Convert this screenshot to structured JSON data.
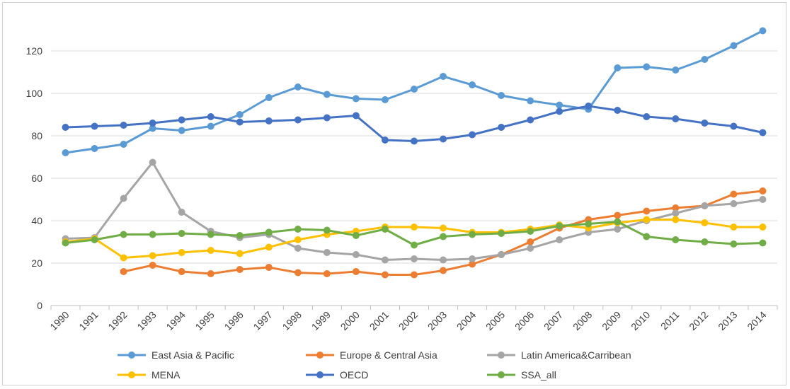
{
  "chart_data": {
    "type": "line",
    "title": "",
    "xlabel": "",
    "ylabel": "",
    "x": [
      "1990",
      "1991",
      "1992",
      "1993",
      "1994",
      "1995",
      "1996",
      "1997",
      "1998",
      "1999",
      "2000",
      "2001",
      "2002",
      "2003",
      "2004",
      "2005",
      "2006",
      "2007",
      "2008",
      "2009",
      "2010",
      "2011",
      "2012",
      "2013",
      "2014"
    ],
    "ylim": [
      0,
      130
    ],
    "yticks": [
      "0",
      "20",
      "40",
      "60",
      "80",
      "100",
      "120"
    ],
    "grid": true,
    "legend_position": "bottom",
    "series": [
      {
        "name": "East Asia & Pacific",
        "color": "#5b9bd5",
        "values": [
          72,
          74,
          76,
          83.5,
          82.5,
          84.5,
          90,
          98,
          103,
          99.5,
          97.5,
          97,
          102,
          108,
          104,
          99,
          96.5,
          94.5,
          92.5,
          112,
          112.5,
          111,
          116,
          122.5,
          129.5
        ]
      },
      {
        "name": "Europe & Central Asia",
        "color": "#ed7d31",
        "values": [
          null,
          null,
          16,
          19,
          16,
          15,
          17,
          18,
          15.5,
          15,
          16,
          14.5,
          14.5,
          16.5,
          19.5,
          24,
          30,
          36.5,
          40.5,
          42.5,
          44.5,
          46,
          47,
          52.5,
          54
        ]
      },
      {
        "name": "Latin America&Carribean",
        "color": "#a5a5a5",
        "values": [
          31.5,
          32,
          50.5,
          67.5,
          44,
          35,
          32,
          33.5,
          27,
          25,
          24,
          21.5,
          22,
          21.5,
          22,
          24,
          27,
          31,
          34.5,
          36,
          40,
          43.5,
          47,
          48,
          50
        ]
      },
      {
        "name": "MENA",
        "color": "#ffc000",
        "values": [
          30,
          31.5,
          22.5,
          23.5,
          25,
          26,
          24.5,
          27.5,
          31,
          33.5,
          35,
          37,
          37,
          36.5,
          34.5,
          34.5,
          36,
          38,
          36.5,
          39,
          40.5,
          40.5,
          39,
          37,
          37
        ]
      },
      {
        "name": "OECD",
        "color": "#4472c4",
        "values": [
          84,
          84.5,
          85,
          86,
          87.5,
          89,
          86.5,
          87,
          87.5,
          88.5,
          89.5,
          78,
          77.5,
          78.5,
          80.5,
          84,
          87.5,
          91.5,
          94,
          92,
          89,
          88,
          86,
          84.5,
          81.5
        ]
      },
      {
        "name": "SSA_all",
        "color": "#70ad47",
        "values": [
          29.5,
          31,
          33.5,
          33.5,
          34,
          33.5,
          33,
          34.5,
          36,
          35.5,
          33,
          36,
          28.5,
          32.5,
          33.5,
          34,
          35,
          37.5,
          38.5,
          39.5,
          32.5,
          31,
          30,
          29,
          29.5
        ]
      }
    ]
  }
}
